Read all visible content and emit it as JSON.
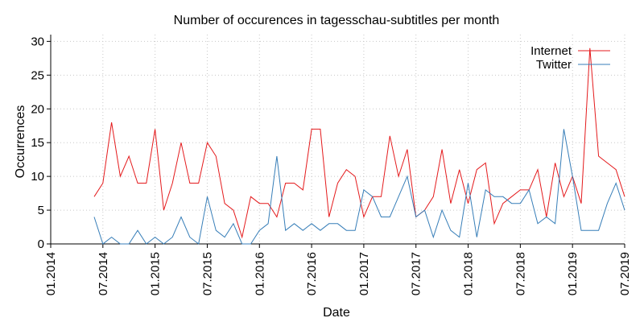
{
  "chart_data": {
    "type": "line",
    "title": "Number of occurences in tagesschau-subtitles per month",
    "xlabel": "Date",
    "ylabel": "Occurrences",
    "x_tick_labels": [
      "01.2014",
      "07.2014",
      "01.2015",
      "07.2015",
      "01.2016",
      "07.2016",
      "01.2017",
      "07.2017",
      "01.2018",
      "07.2018",
      "01.2019",
      "07.2019"
    ],
    "x_ticks": [
      "2014-01",
      "2014-07",
      "2015-01",
      "2015-07",
      "2016-01",
      "2016-07",
      "2017-01",
      "2017-07",
      "2018-01",
      "2018-07",
      "2019-01",
      "2019-07"
    ],
    "xlim": [
      "2014-01",
      "2019-07"
    ],
    "y_ticks": [
      0,
      5,
      10,
      15,
      20,
      25,
      30
    ],
    "ylim": [
      0,
      31
    ],
    "grid": true,
    "legend_position": "top-right",
    "x": [
      "2014-06",
      "2014-07",
      "2014-08",
      "2014-09",
      "2014-10",
      "2014-11",
      "2014-12",
      "2015-01",
      "2015-02",
      "2015-03",
      "2015-04",
      "2015-05",
      "2015-06",
      "2015-07",
      "2015-08",
      "2015-09",
      "2015-10",
      "2015-11",
      "2015-12",
      "2016-01",
      "2016-02",
      "2016-03",
      "2016-04",
      "2016-05",
      "2016-06",
      "2016-07",
      "2016-08",
      "2016-09",
      "2016-10",
      "2016-11",
      "2016-12",
      "2017-01",
      "2017-02",
      "2017-03",
      "2017-04",
      "2017-05",
      "2017-06",
      "2017-07",
      "2017-08",
      "2017-09",
      "2017-10",
      "2017-11",
      "2017-12",
      "2018-01",
      "2018-02",
      "2018-03",
      "2018-04",
      "2018-05",
      "2018-06",
      "2018-07",
      "2018-08",
      "2018-09",
      "2018-10",
      "2018-11",
      "2018-12",
      "2019-01",
      "2019-02",
      "2019-03",
      "2019-04",
      "2019-05",
      "2019-06",
      "2019-07"
    ],
    "series": [
      {
        "name": "Internet",
        "color": "#e41a1c",
        "values": [
          7,
          9,
          18,
          10,
          13,
          9,
          9,
          17,
          5,
          9,
          15,
          9,
          9,
          15,
          13,
          6,
          5,
          1,
          7,
          6,
          6,
          4,
          9,
          9,
          8,
          17,
          17,
          4,
          9,
          11,
          10,
          4,
          7,
          7,
          16,
          10,
          14,
          4,
          5,
          7,
          14,
          6,
          11,
          6,
          11,
          12,
          3,
          6,
          7,
          8,
          8,
          11,
          4,
          12,
          7,
          10,
          6,
          29,
          13,
          12,
          11,
          7
        ]
      },
      {
        "name": "Twitter",
        "color": "#377eb8",
        "values": [
          4,
          0,
          1,
          0,
          0,
          2,
          0,
          1,
          0,
          1,
          4,
          1,
          0,
          7,
          2,
          1,
          3,
          0,
          0,
          2,
          3,
          13,
          2,
          3,
          2,
          3,
          2,
          3,
          3,
          2,
          2,
          8,
          7,
          4,
          4,
          7,
          10,
          4,
          5,
          1,
          5,
          2,
          1,
          9,
          1,
          8,
          7,
          7,
          6,
          6,
          8,
          3,
          4,
          3,
          17,
          10,
          2,
          2,
          2,
          6,
          9,
          5
        ]
      }
    ]
  }
}
